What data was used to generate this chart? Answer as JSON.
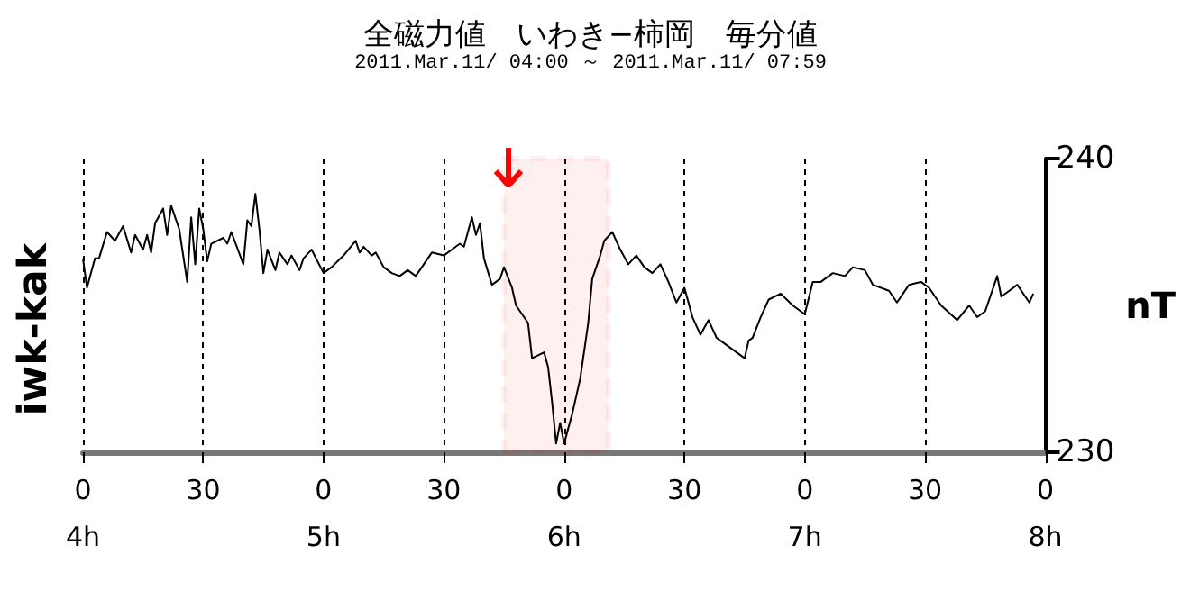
{
  "chart_data": {
    "type": "line",
    "title": "全磁力値　いわき−柿岡　毎分値",
    "subtitle": "2011.Mar.11/ 04:00 ～ 2011.Mar.11/ 07:59",
    "ylabel": "nT",
    "x": [
      "2011-03-11T04:00",
      "2011-03-11T04:01",
      "2011-03-11T04:03",
      "2011-03-11T04:04",
      "2011-03-11T04:06",
      "2011-03-11T04:08",
      "2011-03-11T04:10",
      "2011-03-11T04:12",
      "2011-03-11T04:13",
      "2011-03-11T04:15",
      "2011-03-11T04:16",
      "2011-03-11T04:17",
      "2011-03-11T04:18",
      "2011-03-11T04:20",
      "2011-03-11T04:21",
      "2011-03-11T04:22",
      "2011-03-11T04:24",
      "2011-03-11T04:26",
      "2011-03-11T04:27",
      "2011-03-11T04:28",
      "2011-03-11T04:29",
      "2011-03-11T04:30",
      "2011-03-11T04:31",
      "2011-03-11T04:32",
      "2011-03-11T04:35",
      "2011-03-11T04:36",
      "2011-03-11T04:37",
      "2011-03-11T04:40",
      "2011-03-11T04:41",
      "2011-03-11T04:42",
      "2011-03-11T04:43",
      "2011-03-11T04:44",
      "2011-03-11T04:45",
      "2011-03-11T04:46",
      "2011-03-11T04:48",
      "2011-03-11T04:49",
      "2011-03-11T04:51",
      "2011-03-11T04:52",
      "2011-03-11T04:54",
      "2011-03-11T04:55",
      "2011-03-11T04:57",
      "2011-03-11T05:00",
      "2011-03-11T05:02",
      "2011-03-11T05:05",
      "2011-03-11T05:08",
      "2011-03-11T05:09",
      "2011-03-11T05:10",
      "2011-03-11T05:12",
      "2011-03-11T05:13",
      "2011-03-11T05:15",
      "2011-03-11T05:17",
      "2011-03-11T05:19",
      "2011-03-11T05:21",
      "2011-03-11T05:23",
      "2011-03-11T05:25",
      "2011-03-11T05:27",
      "2011-03-11T05:30",
      "2011-03-11T05:32",
      "2011-03-11T05:34",
      "2011-03-11T05:35",
      "2011-03-11T05:37",
      "2011-03-11T05:38",
      "2011-03-11T05:39",
      "2011-03-11T05:40",
      "2011-03-11T05:42",
      "2011-03-11T05:44",
      "2011-03-11T05:45",
      "2011-03-11T05:47",
      "2011-03-11T05:48",
      "2011-03-11T05:50",
      "2011-03-11T05:51",
      "2011-03-11T05:52",
      "2011-03-11T05:55",
      "2011-03-11T05:56",
      "2011-03-11T05:57",
      "2011-03-11T05:58",
      "2011-03-11T05:59",
      "2011-03-11T06:00",
      "2011-03-11T06:02",
      "2011-03-11T06:04",
      "2011-03-11T06:06",
      "2011-03-11T06:07",
      "2011-03-11T06:09",
      "2011-03-11T06:10",
      "2011-03-11T06:12",
      "2011-03-11T06:14",
      "2011-03-11T06:16",
      "2011-03-11T06:18",
      "2011-03-11T06:20",
      "2011-03-11T06:22",
      "2011-03-11T06:24",
      "2011-03-11T06:26",
      "2011-03-11T06:28",
      "2011-03-11T06:30",
      "2011-03-11T06:32",
      "2011-03-11T06:34",
      "2011-03-11T06:36",
      "2011-03-11T06:38",
      "2011-03-11T06:40",
      "2011-03-11T06:42",
      "2011-03-11T06:45",
      "2011-03-11T06:46",
      "2011-03-11T06:47",
      "2011-03-11T06:49",
      "2011-03-11T06:51",
      "2011-03-11T06:54",
      "2011-03-11T06:57",
      "2011-03-11T07:00",
      "2011-03-11T07:02",
      "2011-03-11T07:04",
      "2011-03-11T07:07",
      "2011-03-11T07:10",
      "2011-03-11T07:12",
      "2011-03-11T07:15",
      "2011-03-11T07:17",
      "2011-03-11T07:21",
      "2011-03-11T07:23",
      "2011-03-11T07:26",
      "2011-03-11T07:29",
      "2011-03-11T07:31",
      "2011-03-11T07:34",
      "2011-03-11T07:38",
      "2011-03-11T07:41",
      "2011-03-11T07:43",
      "2011-03-11T07:45",
      "2011-03-11T07:48",
      "2011-03-11T07:49",
      "2011-03-11T07:51",
      "2011-03-11T07:53",
      "2011-03-11T07:56",
      "2011-03-11T07:57"
    ],
    "series": [
      {
        "name": "iwk-kak",
        "color": "#000000",
        "values": [
          236.6,
          235.6,
          236.6,
          236.6,
          237.5,
          237.2,
          237.7,
          236.8,
          237.4,
          236.9,
          237.4,
          236.8,
          237.8,
          238.3,
          237.4,
          238.4,
          237.6,
          235.8,
          238.0,
          236.4,
          238.3,
          237.6,
          236.5,
          237.1,
          237.3,
          237.1,
          237.5,
          236.4,
          237.9,
          237.7,
          238.8,
          237.6,
          236.1,
          236.9,
          236.2,
          236.8,
          236.4,
          236.7,
          236.2,
          236.6,
          236.9,
          236.1,
          236.3,
          236.7,
          237.2,
          236.8,
          237.0,
          236.7,
          236.8,
          236.3,
          236.1,
          236.0,
          236.2,
          236.0,
          236.4,
          236.8,
          236.7,
          236.9,
          237.1,
          237.0,
          238.0,
          237.4,
          237.8,
          236.6,
          235.7,
          235.9,
          236.3,
          235.6,
          235.0,
          234.6,
          234.4,
          233.2,
          233.4,
          232.9,
          231.7,
          230.3,
          231.0,
          230.3,
          231.3,
          232.5,
          234.4,
          235.9,
          236.7,
          237.2,
          237.5,
          236.9,
          236.4,
          236.7,
          236.3,
          236.1,
          236.4,
          235.8,
          235.1,
          235.6,
          234.6,
          234.0,
          234.5,
          233.9,
          233.7,
          233.5,
          233.2,
          233.8,
          233.9,
          234.6,
          235.2,
          235.4,
          235.0,
          234.7,
          235.8,
          235.8,
          236.1,
          236.0,
          236.3,
          236.2,
          235.7,
          235.5,
          235.1,
          235.7,
          235.8,
          235.6,
          235.0,
          234.5,
          235.0,
          234.6,
          234.8,
          236.0,
          235.3,
          235.5,
          235.7,
          235.1,
          235.4
        ]
      }
    ],
    "xlim": [
      "2011-03-11T04:00",
      "2011-03-11T08:00"
    ],
    "xticks": [
      {
        "value": "2011-03-11T04:00",
        "label": "0\n4h"
      },
      {
        "value": "2011-03-11T04:30",
        "label": "30"
      },
      {
        "value": "2011-03-11T05:00",
        "label": "0\n5h"
      },
      {
        "value": "2011-03-11T05:30",
        "label": "30"
      },
      {
        "value": "2011-03-11T06:00",
        "label": "0\n6h"
      },
      {
        "value": "2011-03-11T06:30",
        "label": "30"
      },
      {
        "value": "2011-03-11T07:00",
        "label": "0\n7h"
      },
      {
        "value": "2011-03-11T07:30",
        "label": "30"
      },
      {
        "value": "2011-03-11T08:00",
        "label": "0\n8h"
      }
    ],
    "ylim": [
      230,
      240
    ],
    "yticks": [
      230,
      240
    ],
    "tick_labels": "xy",
    "bands": [
      {
        "axis": "x",
        "from": "2011-03-11T05:45",
        "to": "2011-03-11T06:11",
        "color": "#ff0000"
      }
    ],
    "grid": "x",
    "legend": false,
    "marker": "none",
    "line_style": "solid"
  }
}
